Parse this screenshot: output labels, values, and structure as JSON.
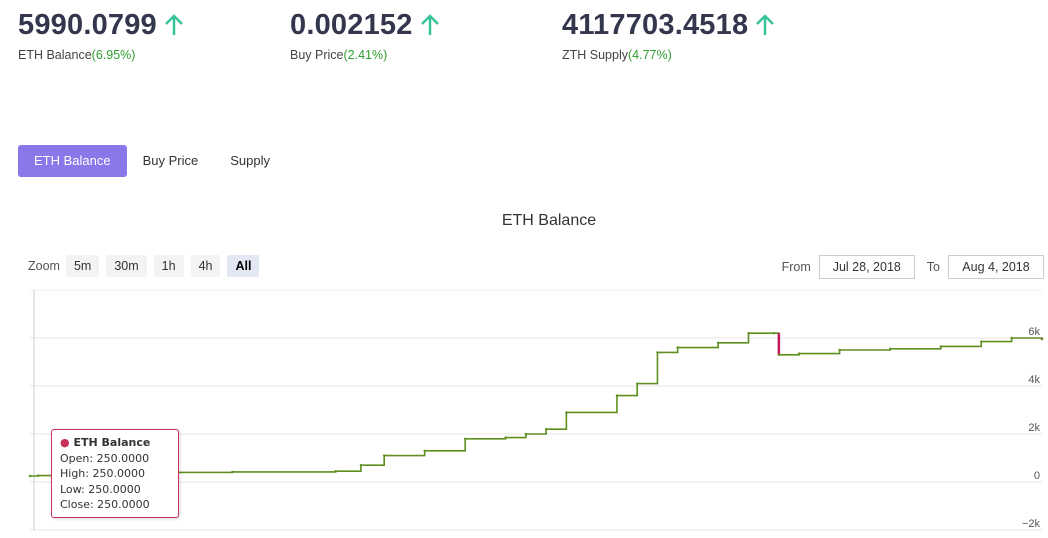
{
  "stats": [
    {
      "value": "5990.0799",
      "label": "ETH Balance",
      "pct": "(6.95%)"
    },
    {
      "value": "0.002152",
      "label": "Buy Price",
      "pct": "(2.41%)"
    },
    {
      "value": "4117703.4518",
      "label": "ZTH Supply",
      "pct": "(4.77%)"
    }
  ],
  "tabs": [
    "ETH Balance",
    "Buy Price",
    "Supply"
  ],
  "chart_title": "ETH Balance",
  "zoom": {
    "label": "Zoom",
    "buttons": [
      "5m",
      "30m",
      "1h",
      "4h",
      "All"
    ]
  },
  "range": {
    "from_label": "From",
    "from_value": "Jul 28, 2018",
    "to_label": "To",
    "to_value": "Aug 4, 2018"
  },
  "tooltip": {
    "title": "ETH Balance",
    "open": "Open: 250.0000",
    "high": "High: 250.0000",
    "low": "Low: 250.0000",
    "close": "Close: 250.0000"
  },
  "colors": {
    "accent": "#8a78ea",
    "up": "#2e9e2e",
    "line_up": "#5e8f1f",
    "line_down": "#c2185b"
  },
  "chart_data": {
    "type": "line",
    "title": "ETH Balance",
    "y_ticks": [
      "−2k",
      "0",
      "2k",
      "4k",
      "6k"
    ],
    "ylim": [
      -2000,
      8000
    ],
    "grid": true,
    "x": [
      0.0,
      0.008,
      0.135,
      0.2,
      0.302,
      0.327,
      0.35,
      0.39,
      0.43,
      0.47,
      0.49,
      0.51,
      0.53,
      0.58,
      0.6,
      0.62,
      0.64,
      0.68,
      0.71,
      0.735,
      0.74,
      0.76,
      0.8,
      0.85,
      0.9,
      0.94,
      0.97,
      1.0
    ],
    "values": [
      250,
      270,
      400,
      420,
      450,
      700,
      1100,
      1300,
      1800,
      1850,
      2000,
      2200,
      2900,
      3600,
      4100,
      5400,
      5600,
      5800,
      6200,
      6200,
      5300,
      5350,
      5500,
      5550,
      5650,
      5850,
      6000,
      5950
    ]
  }
}
